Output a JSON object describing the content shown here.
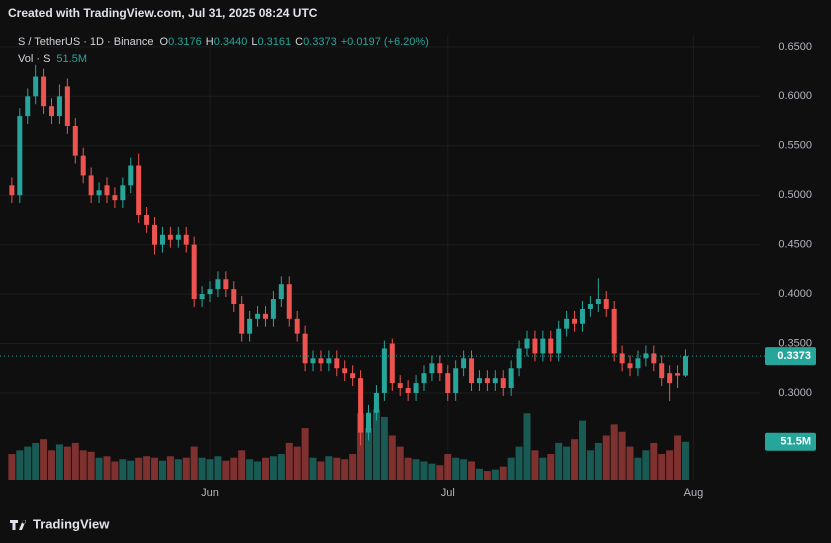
{
  "chart_data": {
    "type": "candlestick",
    "watermark": "Created with TradingView.com, Jul 31, 2025 08:24 UTC",
    "symbol": "S / TetherUS · 1D · Binance",
    "ohlc_legend": [
      {
        "key": "O",
        "value": "0.3176"
      },
      {
        "key": "H",
        "value": "0.3440"
      },
      {
        "key": "L",
        "value": "0.3161"
      },
      {
        "key": "C",
        "value": "0.3373"
      }
    ],
    "change": "+0.0197 (+6.20%)",
    "volume_legend": "Vol · S",
    "brand": "TradingView",
    "up_color": "#26a69a",
    "down_color": "#ef5350",
    "grid": true,
    "xlim": [
      -1.5,
      94.4
    ],
    "xticks": [
      {
        "value": 25,
        "label": "Jun"
      },
      {
        "value": 55,
        "label": "Jul"
      },
      {
        "value": 86,
        "label": "Aug"
      }
    ],
    "ylim": [
      0.212,
      0.662
    ],
    "yticks": [
      {
        "value": 0.3,
        "label": "0.3000"
      },
      {
        "value": 0.35,
        "label": "0.3500"
      },
      {
        "value": 0.4,
        "label": "0.4000"
      },
      {
        "value": 0.45,
        "label": "0.4500"
      },
      {
        "value": 0.5,
        "label": "0.5000"
      },
      {
        "value": 0.55,
        "label": "0.5500"
      },
      {
        "value": 0.6,
        "label": "0.6000"
      },
      {
        "value": 0.65,
        "label": "0.6500"
      }
    ],
    "last_price": {
      "value": 0.3373,
      "label": "0.3373"
    },
    "open": [
      0.51,
      0.5,
      0.58,
      0.6,
      0.62,
      0.59,
      0.58,
      0.61,
      0.57,
      0.54,
      0.52,
      0.5,
      0.51,
      0.5,
      0.495,
      0.51,
      0.53,
      0.48,
      0.47,
      0.45,
      0.46,
      0.455,
      0.46,
      0.45,
      0.395,
      0.4,
      0.405,
      0.415,
      0.405,
      0.39,
      0.36,
      0.375,
      0.38,
      0.375,
      0.395,
      0.41,
      0.375,
      0.36,
      0.33,
      0.335,
      0.33,
      0.335,
      0.325,
      0.32,
      0.315,
      0.26,
      0.28,
      0.3,
      0.35,
      0.31,
      0.305,
      0.3,
      0.31,
      0.32,
      0.33,
      0.32,
      0.3,
      0.325,
      0.335,
      0.31,
      0.315,
      0.31,
      0.315,
      0.305,
      0.325,
      0.345,
      0.355,
      0.34,
      0.355,
      0.34,
      0.365,
      0.375,
      0.37,
      0.385,
      0.39,
      0.395,
      0.385,
      0.34,
      0.33,
      0.325,
      0.335,
      0.34,
      0.33,
      0.32,
      0.32,
      0.3176
    ],
    "high": [
      0.518,
      0.588,
      0.608,
      0.632,
      0.628,
      0.598,
      0.612,
      0.618,
      0.578,
      0.548,
      0.528,
      0.513,
      0.518,
      0.508,
      0.518,
      0.538,
      0.542,
      0.488,
      0.478,
      0.468,
      0.468,
      0.468,
      0.468,
      0.458,
      0.408,
      0.413,
      0.423,
      0.423,
      0.413,
      0.398,
      0.383,
      0.388,
      0.388,
      0.403,
      0.418,
      0.418,
      0.383,
      0.368,
      0.343,
      0.343,
      0.343,
      0.343,
      0.333,
      0.328,
      0.323,
      0.288,
      0.308,
      0.353,
      0.355,
      0.318,
      0.313,
      0.318,
      0.328,
      0.338,
      0.338,
      0.328,
      0.333,
      0.343,
      0.343,
      0.323,
      0.323,
      0.323,
      0.323,
      0.333,
      0.353,
      0.363,
      0.363,
      0.363,
      0.363,
      0.373,
      0.383,
      0.383,
      0.393,
      0.398,
      0.416,
      0.403,
      0.393,
      0.348,
      0.338,
      0.343,
      0.348,
      0.348,
      0.338,
      0.328,
      0.328,
      0.344
    ],
    "low": [
      0.492,
      0.492,
      0.572,
      0.592,
      0.582,
      0.572,
      0.572,
      0.562,
      0.532,
      0.512,
      0.492,
      0.492,
      0.492,
      0.487,
      0.487,
      0.502,
      0.472,
      0.462,
      0.44,
      0.442,
      0.447,
      0.447,
      0.442,
      0.387,
      0.387,
      0.392,
      0.397,
      0.397,
      0.382,
      0.352,
      0.352,
      0.367,
      0.367,
      0.367,
      0.387,
      0.367,
      0.352,
      0.322,
      0.322,
      0.322,
      0.322,
      0.317,
      0.312,
      0.307,
      0.247,
      0.252,
      0.272,
      0.292,
      0.302,
      0.297,
      0.292,
      0.292,
      0.302,
      0.312,
      0.312,
      0.292,
      0.292,
      0.317,
      0.302,
      0.302,
      0.302,
      0.302,
      0.297,
      0.297,
      0.317,
      0.337,
      0.332,
      0.332,
      0.332,
      0.332,
      0.357,
      0.362,
      0.362,
      0.377,
      0.382,
      0.377,
      0.332,
      0.322,
      0.317,
      0.317,
      0.327,
      0.322,
      0.307,
      0.292,
      0.305,
      0.3161
    ],
    "close": [
      0.5,
      0.58,
      0.6,
      0.62,
      0.59,
      0.58,
      0.6,
      0.57,
      0.54,
      0.52,
      0.5,
      0.505,
      0.5,
      0.495,
      0.51,
      0.53,
      0.48,
      0.47,
      0.45,
      0.46,
      0.455,
      0.46,
      0.45,
      0.395,
      0.4,
      0.405,
      0.415,
      0.405,
      0.39,
      0.36,
      0.375,
      0.38,
      0.375,
      0.395,
      0.41,
      0.375,
      0.36,
      0.33,
      0.335,
      0.33,
      0.335,
      0.325,
      0.32,
      0.315,
      0.26,
      0.28,
      0.3,
      0.345,
      0.31,
      0.305,
      0.3,
      0.31,
      0.32,
      0.33,
      0.32,
      0.3,
      0.325,
      0.335,
      0.31,
      0.315,
      0.31,
      0.315,
      0.305,
      0.325,
      0.345,
      0.355,
      0.34,
      0.355,
      0.34,
      0.365,
      0.375,
      0.37,
      0.385,
      0.39,
      0.395,
      0.385,
      0.34,
      0.33,
      0.325,
      0.335,
      0.34,
      0.33,
      0.315,
      0.31,
      0.3176,
      0.3373
    ],
    "volume": {
      "vlim": [
        0,
        600
      ],
      "values": [
        35,
        40,
        45,
        50,
        55,
        40,
        48,
        45,
        50,
        40,
        38,
        30,
        32,
        25,
        28,
        26,
        30,
        32,
        30,
        26,
        32,
        28,
        30,
        45,
        30,
        28,
        32,
        26,
        30,
        40,
        28,
        25,
        30,
        32,
        35,
        50,
        45,
        70,
        30,
        25,
        32,
        30,
        28,
        35,
        90,
        70,
        95,
        85,
        60,
        45,
        30,
        28,
        25,
        22,
        20,
        35,
        30,
        28,
        25,
        15,
        12,
        14,
        18,
        30,
        45,
        90,
        40,
        30,
        35,
        50,
        45,
        55,
        80,
        40,
        50,
        60,
        75,
        65,
        45,
        30,
        40,
        50,
        35,
        40,
        60,
        51.5
      ],
      "value_labels": {
        "85": "51.5M"
      }
    }
  }
}
